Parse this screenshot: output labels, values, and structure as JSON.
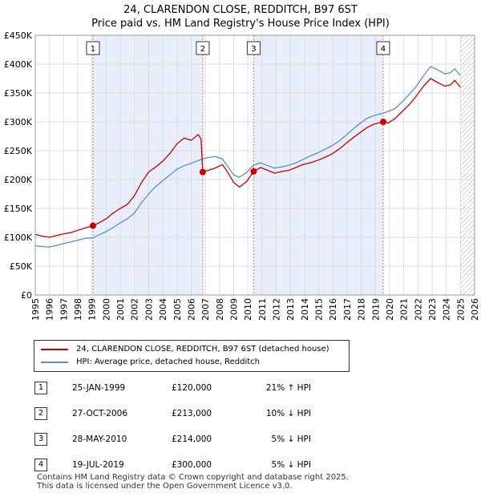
{
  "header": {
    "title_line1": "24, CLARENDON CLOSE, REDDITCH, B97 6ST",
    "title_line2": "Price paid vs. HM Land Registry's House Price Index (HPI)"
  },
  "colors": {
    "property_line": "#cc0000",
    "hpi_line": "#5b8fc7",
    "highlight_band": "#e8eefa",
    "grid": "#dddddd",
    "marker_line": "#dd7777"
  },
  "chart_data": {
    "type": "line",
    "title": "24, CLARENDON CLOSE, REDDITCH, B97 6ST — Price paid vs. HM Land Registry's House Price Index (HPI)",
    "xlim": [
      1995,
      2026
    ],
    "ylim": [
      0,
      450000
    ],
    "x_ticks": [
      1995,
      1996,
      1997,
      1998,
      1999,
      2000,
      2001,
      2002,
      2003,
      2004,
      2005,
      2006,
      2007,
      2008,
      2009,
      2010,
      2011,
      2012,
      2013,
      2014,
      2015,
      2016,
      2017,
      2018,
      2019,
      2020,
      2021,
      2022,
      2023,
      2024,
      2025,
      2026
    ],
    "y_ticks": [
      {
        "value": 0,
        "label": "£0"
      },
      {
        "value": 50000,
        "label": "£50K"
      },
      {
        "value": 100000,
        "label": "£100K"
      },
      {
        "value": 150000,
        "label": "£150K"
      },
      {
        "value": 200000,
        "label": "£200K"
      },
      {
        "value": 250000,
        "label": "£250K"
      },
      {
        "value": 300000,
        "label": "£300K"
      },
      {
        "value": 350000,
        "label": "£350K"
      },
      {
        "value": 400000,
        "label": "£400K"
      },
      {
        "value": 450000,
        "label": "£450K"
      }
    ],
    "highlight_bands": [
      [
        1999.07,
        2006.82
      ],
      [
        2010.41,
        2019.55
      ]
    ],
    "future_hatch_from": 2025.0,
    "series": [
      {
        "name": "24, CLARENDON CLOSE, REDDITCH, B97 6ST (detached house)",
        "points": [
          [
            1995.0,
            105000
          ],
          [
            1995.5,
            102000
          ],
          [
            1996.0,
            100000
          ],
          [
            1996.5,
            103000
          ],
          [
            1997.0,
            106000
          ],
          [
            1997.5,
            108000
          ],
          [
            1998.0,
            112000
          ],
          [
            1998.5,
            116000
          ],
          [
            1999.07,
            120000
          ],
          [
            1999.5,
            125000
          ],
          [
            2000.0,
            132000
          ],
          [
            2000.5,
            142000
          ],
          [
            2001.0,
            150000
          ],
          [
            2001.5,
            157000
          ],
          [
            2002.0,
            172000
          ],
          [
            2002.5,
            195000
          ],
          [
            2003.0,
            213000
          ],
          [
            2003.5,
            222000
          ],
          [
            2004.0,
            232000
          ],
          [
            2004.5,
            245000
          ],
          [
            2005.0,
            262000
          ],
          [
            2005.5,
            272000
          ],
          [
            2006.0,
            268000
          ],
          [
            2006.5,
            278000
          ],
          [
            2006.7,
            270000
          ],
          [
            2006.82,
            213000
          ],
          [
            2007.2,
            216000
          ],
          [
            2007.7,
            220000
          ],
          [
            2008.2,
            226000
          ],
          [
            2008.5,
            216000
          ],
          [
            2009.0,
            195000
          ],
          [
            2009.4,
            187000
          ],
          [
            2009.9,
            196000
          ],
          [
            2010.41,
            214000
          ],
          [
            2010.9,
            221000
          ],
          [
            2011.4,
            216000
          ],
          [
            2011.9,
            211000
          ],
          [
            2012.4,
            214000
          ],
          [
            2012.9,
            216000
          ],
          [
            2013.4,
            221000
          ],
          [
            2013.9,
            226000
          ],
          [
            2014.4,
            229000
          ],
          [
            2014.9,
            233000
          ],
          [
            2015.4,
            238000
          ],
          [
            2015.9,
            244000
          ],
          [
            2016.4,
            252000
          ],
          [
            2016.9,
            262000
          ],
          [
            2017.4,
            272000
          ],
          [
            2017.9,
            281000
          ],
          [
            2018.4,
            290000
          ],
          [
            2018.9,
            296000
          ],
          [
            2019.55,
            300000
          ],
          [
            2019.9,
            298000
          ],
          [
            2020.4,
            306000
          ],
          [
            2020.9,
            318000
          ],
          [
            2021.4,
            330000
          ],
          [
            2021.9,
            345000
          ],
          [
            2022.4,
            362000
          ],
          [
            2022.9,
            375000
          ],
          [
            2023.4,
            368000
          ],
          [
            2023.9,
            362000
          ],
          [
            2024.3,
            364000
          ],
          [
            2024.6,
            372000
          ],
          [
            2024.8,
            366000
          ],
          [
            2025.0,
            360000
          ]
        ]
      },
      {
        "name": "HPI: Average price, detached house, Redditch",
        "points": [
          [
            1995.0,
            85000
          ],
          [
            1995.5,
            84000
          ],
          [
            1996.0,
            83000
          ],
          [
            1996.5,
            86000
          ],
          [
            1997.0,
            89000
          ],
          [
            1997.5,
            92000
          ],
          [
            1998.0,
            95000
          ],
          [
            1998.5,
            98000
          ],
          [
            1999.07,
            99000
          ],
          [
            1999.5,
            104000
          ],
          [
            2000.0,
            110000
          ],
          [
            2000.5,
            117000
          ],
          [
            2001.0,
            125000
          ],
          [
            2001.5,
            132000
          ],
          [
            2002.0,
            142000
          ],
          [
            2002.5,
            160000
          ],
          [
            2003.0,
            175000
          ],
          [
            2003.5,
            188000
          ],
          [
            2004.0,
            198000
          ],
          [
            2004.5,
            208000
          ],
          [
            2005.0,
            218000
          ],
          [
            2005.5,
            224000
          ],
          [
            2006.0,
            228000
          ],
          [
            2006.82,
            236000
          ],
          [
            2007.2,
            238000
          ],
          [
            2007.7,
            240000
          ],
          [
            2008.2,
            236000
          ],
          [
            2008.6,
            222000
          ],
          [
            2009.0,
            208000
          ],
          [
            2009.4,
            204000
          ],
          [
            2009.9,
            212000
          ],
          [
            2010.41,
            225000
          ],
          [
            2010.9,
            229000
          ],
          [
            2011.4,
            224000
          ],
          [
            2011.9,
            220000
          ],
          [
            2012.4,
            222000
          ],
          [
            2012.9,
            225000
          ],
          [
            2013.4,
            229000
          ],
          [
            2013.9,
            235000
          ],
          [
            2014.4,
            241000
          ],
          [
            2014.9,
            246000
          ],
          [
            2015.4,
            252000
          ],
          [
            2015.9,
            258000
          ],
          [
            2016.4,
            266000
          ],
          [
            2016.9,
            276000
          ],
          [
            2017.4,
            287000
          ],
          [
            2017.9,
            297000
          ],
          [
            2018.4,
            306000
          ],
          [
            2018.9,
            311000
          ],
          [
            2019.55,
            315000
          ],
          [
            2019.9,
            318000
          ],
          [
            2020.4,
            323000
          ],
          [
            2020.9,
            335000
          ],
          [
            2021.4,
            348000
          ],
          [
            2021.9,
            362000
          ],
          [
            2022.4,
            380000
          ],
          [
            2022.9,
            396000
          ],
          [
            2023.4,
            390000
          ],
          [
            2023.9,
            383000
          ],
          [
            2024.3,
            385000
          ],
          [
            2024.6,
            392000
          ],
          [
            2024.8,
            386000
          ],
          [
            2025.0,
            380000
          ]
        ]
      }
    ],
    "sales": [
      {
        "num": "1",
        "x": 1999.07,
        "price": 120000
      },
      {
        "num": "2",
        "x": 2006.82,
        "price": 213000
      },
      {
        "num": "3",
        "x": 2010.41,
        "price": 214000
      },
      {
        "num": "4",
        "x": 2019.55,
        "price": 300000
      }
    ]
  },
  "legend": {
    "property_label": "24, CLARENDON CLOSE, REDDITCH, B97 6ST (detached house)",
    "hpi_label": "HPI: Average price, detached house, Redditch"
  },
  "table": [
    {
      "num": "1",
      "date": "25-JAN-1999",
      "price": "£120,000",
      "hpi": "21% ↑ HPI"
    },
    {
      "num": "2",
      "date": "27-OCT-2006",
      "price": "£213,000",
      "hpi": "10% ↓ HPI"
    },
    {
      "num": "3",
      "date": "28-MAY-2010",
      "price": "£214,000",
      "hpi": "5% ↓ HPI"
    },
    {
      "num": "4",
      "date": "19-JUL-2019",
      "price": "£300,000",
      "hpi": "5% ↓ HPI"
    }
  ],
  "footer": {
    "line1": "Contains HM Land Registry data © Crown copyright and database right 2025.",
    "line2": "This data is licensed under the Open Government Licence v3.0."
  }
}
